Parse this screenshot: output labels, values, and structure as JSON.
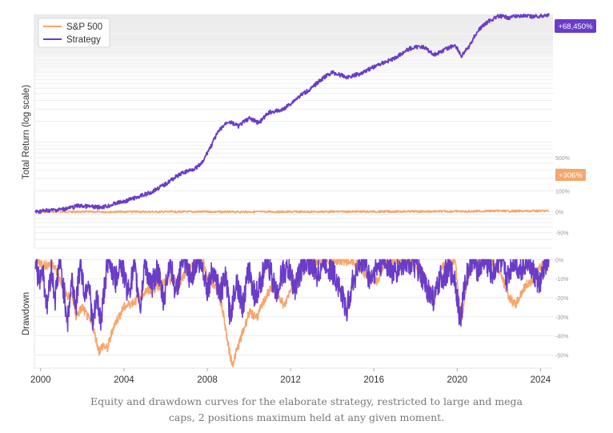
{
  "caption": "Equity and drawdown curves for the elaborate strategy, restricted to large and mega caps, 2 positions maximum held at any given moment.",
  "colors": {
    "sp500": "#f5a66d",
    "strategy": "#6a3cc8",
    "grid": "#e6e6e6",
    "axis_text": "#999999",
    "label_text": "#333333"
  },
  "chart_data": [
    {
      "type": "line",
      "panel": "equity",
      "ylabel": "Total Return (log scale)",
      "yscale": "log",
      "x_range": [
        1999.7,
        2024.6
      ],
      "ylim_multiple": [
        0.3,
        690
      ],
      "yticks": [
        {
          "label": "500%",
          "multiple": 6
        },
        {
          "label": "300%",
          "multiple": 4
        },
        {
          "label": "200%",
          "multiple": 3
        },
        {
          "label": "100%",
          "multiple": 2
        },
        {
          "label": "0%",
          "multiple": 1
        },
        {
          "label": "-50%",
          "multiple": 0.5
        }
      ],
      "legend": {
        "position": "top-left",
        "entries": [
          "S&P 500",
          "Strategy"
        ]
      },
      "series": [
        {
          "name": "S&P 500",
          "end_label": "+306%",
          "points": [
            [
              1999.75,
              0.0
            ],
            [
              2000.2,
              0.1
            ],
            [
              2000.7,
              0.05
            ],
            [
              2001.3,
              -0.12
            ],
            [
              2001.7,
              -0.25
            ],
            [
              2002.2,
              -0.28
            ],
            [
              2002.6,
              -0.42
            ],
            [
              2002.8,
              -0.48
            ],
            [
              2003.2,
              -0.42
            ],
            [
              2003.5,
              -0.25
            ],
            [
              2004.0,
              -0.15
            ],
            [
              2005.0,
              -0.1
            ],
            [
              2006.0,
              0.0
            ],
            [
              2006.5,
              0.05
            ],
            [
              2007.5,
              0.15
            ],
            [
              2007.8,
              0.18
            ],
            [
              2008.5,
              0.02
            ],
            [
              2008.9,
              -0.3
            ],
            [
              2009.2,
              -0.5
            ],
            [
              2009.5,
              -0.35
            ],
            [
              2010.0,
              -0.15
            ],
            [
              2010.5,
              -0.2
            ],
            [
              2011.0,
              -0.05
            ],
            [
              2011.7,
              -0.15
            ],
            [
              2012.0,
              -0.05
            ],
            [
              2013.0,
              0.15
            ],
            [
              2014.0,
              0.45
            ],
            [
              2015.0,
              0.6
            ],
            [
              2016.0,
              0.55
            ],
            [
              2016.5,
              0.75
            ],
            [
              2017.0,
              0.95
            ],
            [
              2018.0,
              1.2
            ],
            [
              2018.9,
              1.1
            ],
            [
              2019.5,
              1.5
            ],
            [
              2020.0,
              1.8
            ],
            [
              2020.2,
              0.95
            ],
            [
              2020.5,
              1.4
            ],
            [
              2021.0,
              2.0
            ],
            [
              2021.5,
              2.5
            ],
            [
              2022.0,
              3.0
            ],
            [
              2022.5,
              2.2
            ],
            [
              2022.8,
              2.0
            ],
            [
              2023.3,
              2.4
            ],
            [
              2023.9,
              3.0
            ],
            [
              2024.4,
              3.06
            ]
          ]
        },
        {
          "name": "Strategy",
          "end_label": "+68,450%",
          "points": [
            [
              1999.75,
              0.0
            ],
            [
              2000.0,
              2.0
            ],
            [
              2000.3,
              4.5
            ],
            [
              2000.6,
              5.5
            ],
            [
              2001.0,
              8.0
            ],
            [
              2001.5,
              15.0
            ],
            [
              2001.8,
              22.0
            ],
            [
              2002.3,
              19.0
            ],
            [
              2002.7,
              16.0
            ],
            [
              2003.2,
              20.0
            ],
            [
              2003.7,
              35.0
            ],
            [
              2004.0,
              40.0
            ],
            [
              2004.6,
              60.0
            ],
            [
              2005.3,
              90.0
            ],
            [
              2006.0,
              150.0
            ],
            [
              2006.8,
              260.0
            ],
            [
              2007.5,
              330.0
            ],
            [
              2007.8,
              420.0
            ],
            [
              2008.2,
              800.0
            ],
            [
              2008.6,
              1400.0
            ],
            [
              2009.0,
              1900.0
            ],
            [
              2009.5,
              1600.0
            ],
            [
              2010.0,
              2100.0
            ],
            [
              2010.5,
              1800.0
            ],
            [
              2011.0,
              2600.0
            ],
            [
              2011.6,
              2800.0
            ],
            [
              2012.0,
              3500.0
            ],
            [
              2013.0,
              5800.0
            ],
            [
              2013.5,
              8000.0
            ],
            [
              2014.0,
              10000.0
            ],
            [
              2014.7,
              8500.0
            ],
            [
              2015.3,
              9500.0
            ],
            [
              2016.0,
              12000.0
            ],
            [
              2016.5,
              14000.0
            ],
            [
              2017.0,
              16000.0
            ],
            [
              2017.7,
              22000.0
            ],
            [
              2018.3,
              24000.0
            ],
            [
              2018.9,
              18000.0
            ],
            [
              2019.5,
              22000.0
            ],
            [
              2019.9,
              25000.0
            ],
            [
              2020.2,
              17000.0
            ],
            [
              2020.6,
              24000.0
            ],
            [
              2021.0,
              40000.0
            ],
            [
              2021.5,
              55000.0
            ],
            [
              2022.0,
              65000.0
            ],
            [
              2022.5,
              62000.0
            ],
            [
              2023.0,
              66000.0
            ],
            [
              2023.5,
              64000.0
            ],
            [
              2024.0,
              65000.0
            ],
            [
              2024.4,
              68450.0
            ]
          ]
        }
      ]
    },
    {
      "type": "line",
      "panel": "drawdown",
      "ylabel": "Drawdown",
      "ylim": [
        -57,
        1
      ],
      "yticks": [
        {
          "label": "0%",
          "value": 0
        },
        {
          "label": "-10%",
          "value": -10
        },
        {
          "label": "-20%",
          "value": -20
        },
        {
          "label": "-30%",
          "value": -30
        },
        {
          "label": "-40%",
          "value": -40
        },
        {
          "label": "-50%",
          "value": -50
        }
      ],
      "x_range": [
        1999.7,
        2024.6
      ],
      "xticks": [
        "2000",
        "2004",
        "2008",
        "2012",
        "2016",
        "2020",
        "2024"
      ],
      "series": [
        {
          "name": "S&P 500",
          "points": [
            [
              1999.75,
              0
            ],
            [
              2000.2,
              -3
            ],
            [
              2000.6,
              -2
            ],
            [
              2000.9,
              -10
            ],
            [
              2001.3,
              -20
            ],
            [
              2001.5,
              -18
            ],
            [
              2001.7,
              -30
            ],
            [
              2002.0,
              -25
            ],
            [
              2002.5,
              -35
            ],
            [
              2002.8,
              -48
            ],
            [
              2003.0,
              -45
            ],
            [
              2003.2,
              -47
            ],
            [
              2003.5,
              -35
            ],
            [
              2004.0,
              -25
            ],
            [
              2004.5,
              -22
            ],
            [
              2005.0,
              -17
            ],
            [
              2005.5,
              -15
            ],
            [
              2006.0,
              -12
            ],
            [
              2006.4,
              -10
            ],
            [
              2006.6,
              -14
            ],
            [
              2007.0,
              -5
            ],
            [
              2007.5,
              -2
            ],
            [
              2007.8,
              0
            ],
            [
              2008.0,
              -10
            ],
            [
              2008.5,
              -15
            ],
            [
              2008.8,
              -30
            ],
            [
              2009.0,
              -45
            ],
            [
              2009.2,
              -55
            ],
            [
              2009.5,
              -45
            ],
            [
              2009.8,
              -35
            ],
            [
              2010.0,
              -28
            ],
            [
              2010.4,
              -30
            ],
            [
              2010.8,
              -20
            ],
            [
              2011.2,
              -12
            ],
            [
              2011.7,
              -25
            ],
            [
              2012.0,
              -15
            ],
            [
              2012.5,
              -5
            ],
            [
              2013.0,
              0
            ],
            [
              2013.5,
              -2
            ],
            [
              2014.0,
              0
            ],
            [
              2015.0,
              -1
            ],
            [
              2015.6,
              -8
            ],
            [
              2016.1,
              -12
            ],
            [
              2016.5,
              -3
            ],
            [
              2017.0,
              0
            ],
            [
              2018.0,
              -1
            ],
            [
              2018.2,
              -8
            ],
            [
              2018.9,
              -19
            ],
            [
              2019.3,
              -3
            ],
            [
              2019.9,
              0
            ],
            [
              2020.2,
              -33
            ],
            [
              2020.5,
              -10
            ],
            [
              2020.9,
              0
            ],
            [
              2021.5,
              0
            ],
            [
              2022.0,
              -5
            ],
            [
              2022.5,
              -20
            ],
            [
              2022.8,
              -24
            ],
            [
              2023.2,
              -15
            ],
            [
              2023.8,
              -8
            ],
            [
              2024.2,
              0
            ]
          ]
        },
        {
          "name": "Strategy",
          "points": [
            [
              1999.75,
              0
            ],
            [
              1999.9,
              -10
            ],
            [
              2000.1,
              -5
            ],
            [
              2000.3,
              -25
            ],
            [
              2000.5,
              -5
            ],
            [
              2000.7,
              -20
            ],
            [
              2000.9,
              0
            ],
            [
              2001.1,
              -15
            ],
            [
              2001.3,
              -32
            ],
            [
              2001.5,
              -10
            ],
            [
              2001.7,
              -25
            ],
            [
              2001.9,
              0
            ],
            [
              2002.1,
              -18
            ],
            [
              2002.3,
              -10
            ],
            [
              2002.5,
              -35
            ],
            [
              2002.7,
              -20
            ],
            [
              2002.9,
              -33
            ],
            [
              2003.1,
              -10
            ],
            [
              2003.3,
              0
            ],
            [
              2003.6,
              -12
            ],
            [
              2003.8,
              0
            ],
            [
              2004.2,
              -17
            ],
            [
              2004.5,
              -5
            ],
            [
              2004.8,
              -25
            ],
            [
              2005.0,
              0
            ],
            [
              2005.3,
              -15
            ],
            [
              2005.6,
              -5
            ],
            [
              2005.9,
              -22
            ],
            [
              2006.2,
              0
            ],
            [
              2006.5,
              -18
            ],
            [
              2006.8,
              0
            ],
            [
              2007.2,
              -10
            ],
            [
              2007.5,
              0
            ],
            [
              2007.8,
              -5
            ],
            [
              2008.0,
              -15
            ],
            [
              2008.3,
              -5
            ],
            [
              2008.6,
              -18
            ],
            [
              2008.9,
              -10
            ],
            [
              2009.1,
              -30
            ],
            [
              2009.4,
              -10
            ],
            [
              2009.7,
              -25
            ],
            [
              2010.0,
              -5
            ],
            [
              2010.3,
              -20
            ],
            [
              2010.6,
              -10
            ],
            [
              2010.9,
              0
            ],
            [
              2011.3,
              -18
            ],
            [
              2011.6,
              -7
            ],
            [
              2011.9,
              -5
            ],
            [
              2012.2,
              -15
            ],
            [
              2012.5,
              -5
            ],
            [
              2012.8,
              0
            ],
            [
              2013.3,
              -8
            ],
            [
              2013.6,
              0
            ],
            [
              2014.2,
              -10
            ],
            [
              2014.5,
              -20
            ],
            [
              2014.7,
              -27
            ],
            [
              2014.9,
              -15
            ],
            [
              2015.2,
              -5
            ],
            [
              2015.5,
              0
            ],
            [
              2015.8,
              -10
            ],
            [
              2016.1,
              -5
            ],
            [
              2016.5,
              0
            ],
            [
              2017.0,
              -8
            ],
            [
              2017.5,
              0
            ],
            [
              2018.0,
              -3
            ],
            [
              2018.3,
              -10
            ],
            [
              2018.7,
              -18
            ],
            [
              2018.9,
              -21
            ],
            [
              2019.2,
              -10
            ],
            [
              2019.6,
              -5
            ],
            [
              2019.9,
              -10
            ],
            [
              2020.15,
              -33
            ],
            [
              2020.4,
              -10
            ],
            [
              2020.7,
              0
            ],
            [
              2021.0,
              -5
            ],
            [
              2021.3,
              0
            ],
            [
              2021.7,
              -8
            ],
            [
              2022.0,
              0
            ],
            [
              2022.4,
              -10
            ],
            [
              2022.7,
              0
            ],
            [
              2023.0,
              -5
            ],
            [
              2023.4,
              0
            ],
            [
              2023.7,
              -8
            ],
            [
              2024.0,
              -13
            ],
            [
              2024.2,
              -3
            ],
            [
              2024.4,
              0
            ]
          ]
        }
      ]
    }
  ]
}
